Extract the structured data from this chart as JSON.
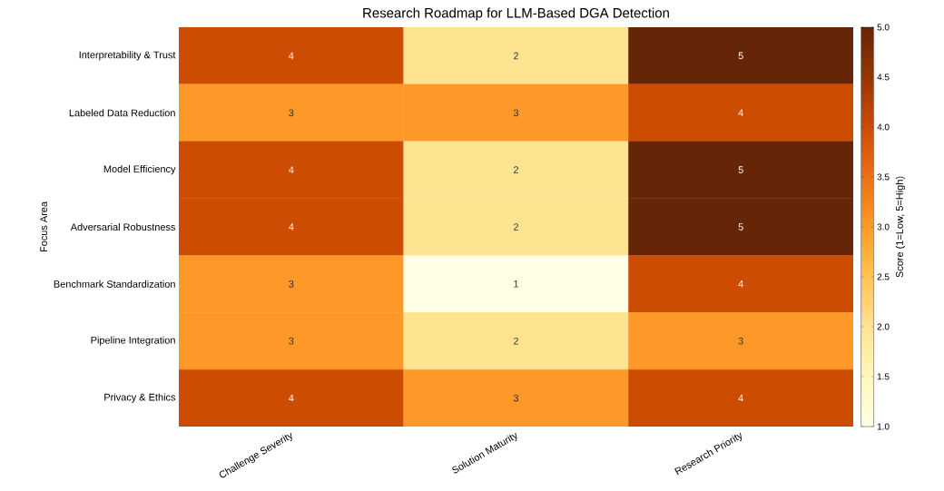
{
  "chart_data": {
    "type": "heatmap",
    "title": "Research Roadmap for LLM-Based DGA Detection",
    "ylabel": "Focus Area",
    "clabel": "Score (1=Low, 5=High)",
    "categories": [
      "Challenge Severity",
      "Solution Maturity",
      "Research Priority"
    ],
    "y_categories": [
      "Interpretability & Trust",
      "Labeled Data Reduction",
      "Model Efficiency",
      "Adversarial Robustness",
      "Benchmark Standardization",
      "Pipeline Integration",
      "Privacy & Ethics"
    ],
    "cells": [
      [
        4,
        2,
        5
      ],
      [
        3,
        3,
        4
      ],
      [
        4,
        2,
        5
      ],
      [
        4,
        2,
        5
      ],
      [
        3,
        1,
        4
      ],
      [
        3,
        2,
        3
      ],
      [
        4,
        3,
        4
      ]
    ],
    "clim": [
      1,
      5
    ],
    "cticks": [
      {
        "value": 1,
        "label": "1.0"
      },
      {
        "value": 1.5,
        "label": "1.5"
      },
      {
        "value": 2,
        "label": "2.0"
      },
      {
        "value": 2.5,
        "label": "2.5"
      },
      {
        "value": 3,
        "label": "3.0"
      },
      {
        "value": 3.5,
        "label": "3.5"
      },
      {
        "value": 4,
        "label": "4.0"
      },
      {
        "value": 4.5,
        "label": "4.5"
      },
      {
        "value": 5,
        "label": "5.0"
      }
    ],
    "data_labels": true
  }
}
